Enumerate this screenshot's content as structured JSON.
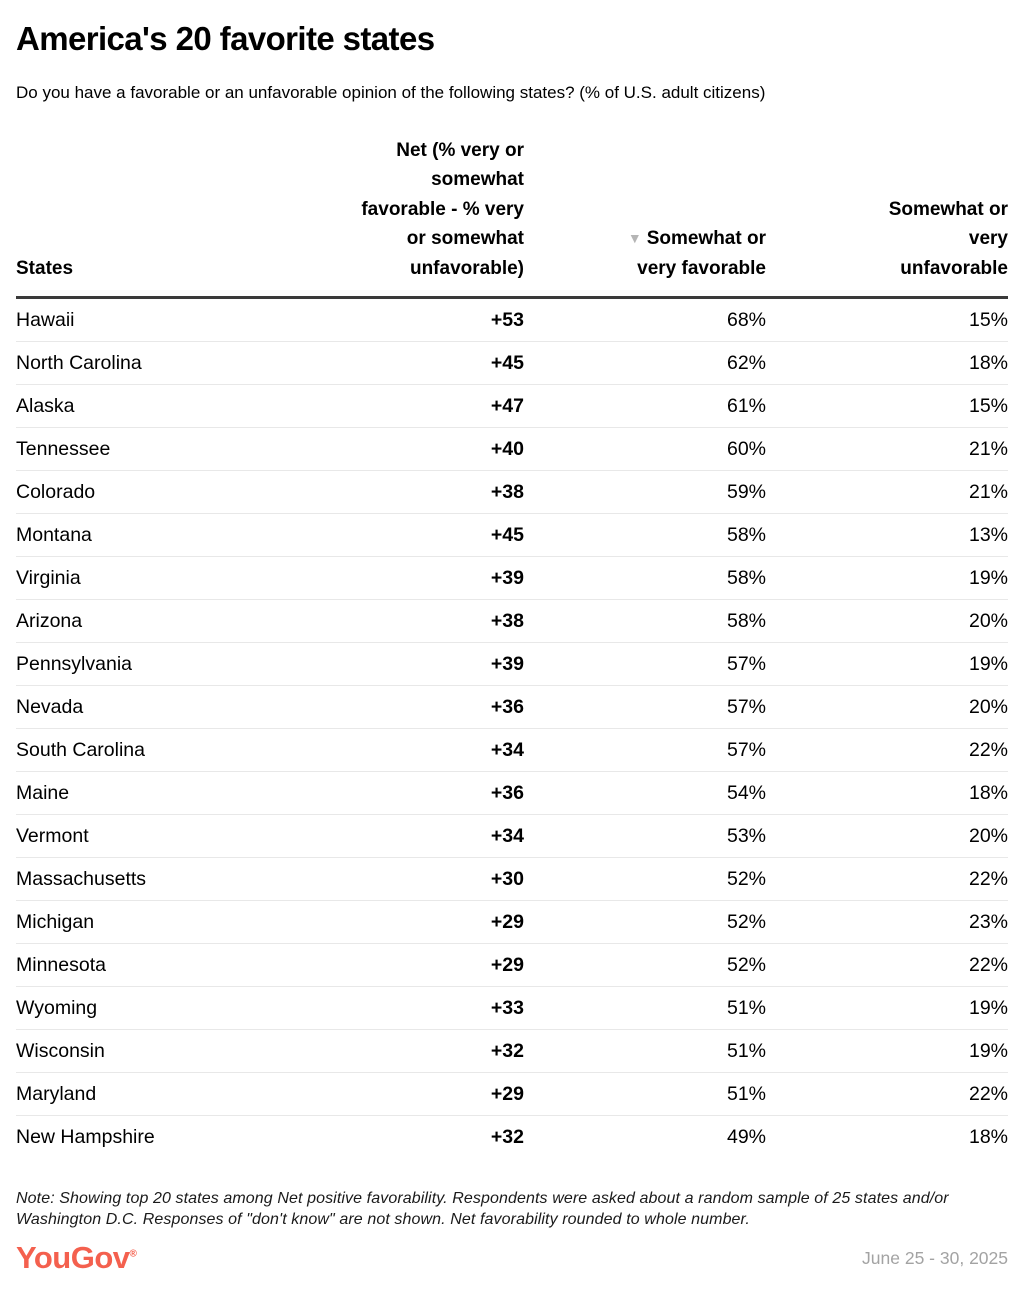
{
  "header": {
    "title": "America's 20 favorite states",
    "subtitle": "Do you have a favorable or an unfavorable opinion of the following states? (% of U.S. adult citizens)"
  },
  "table": {
    "columns": {
      "state": "States",
      "net": "Net (% very or\nsomewhat\nfavorable - % very\nor somewhat\nunfavorable)",
      "favorable": "Somewhat or\nvery favorable",
      "favorable_sort_indicator": "▼",
      "unfavorable": "Somewhat or\nvery\nunfavorable"
    },
    "rows": [
      {
        "state": "Hawaii",
        "net": "+53",
        "favorable": "68%",
        "unfavorable": "15%"
      },
      {
        "state": "North Carolina",
        "net": "+45",
        "favorable": "62%",
        "unfavorable": "18%"
      },
      {
        "state": "Alaska",
        "net": "+47",
        "favorable": "61%",
        "unfavorable": "15%"
      },
      {
        "state": "Tennessee",
        "net": "+40",
        "favorable": "60%",
        "unfavorable": "21%"
      },
      {
        "state": "Colorado",
        "net": "+38",
        "favorable": "59%",
        "unfavorable": "21%"
      },
      {
        "state": "Montana",
        "net": "+45",
        "favorable": "58%",
        "unfavorable": "13%"
      },
      {
        "state": "Virginia",
        "net": "+39",
        "favorable": "58%",
        "unfavorable": "19%"
      },
      {
        "state": "Arizona",
        "net": "+38",
        "favorable": "58%",
        "unfavorable": "20%"
      },
      {
        "state": "Pennsylvania",
        "net": "+39",
        "favorable": "57%",
        "unfavorable": "19%"
      },
      {
        "state": "Nevada",
        "net": "+36",
        "favorable": "57%",
        "unfavorable": "20%"
      },
      {
        "state": "South Carolina",
        "net": "+34",
        "favorable": "57%",
        "unfavorable": "22%"
      },
      {
        "state": "Maine",
        "net": "+36",
        "favorable": "54%",
        "unfavorable": "18%"
      },
      {
        "state": "Vermont",
        "net": "+34",
        "favorable": "53%",
        "unfavorable": "20%"
      },
      {
        "state": "Massachusetts",
        "net": "+30",
        "favorable": "52%",
        "unfavorable": "22%"
      },
      {
        "state": "Michigan",
        "net": "+29",
        "favorable": "52%",
        "unfavorable": "23%"
      },
      {
        "state": "Minnesota",
        "net": "+29",
        "favorable": "52%",
        "unfavorable": "22%"
      },
      {
        "state": "Wyoming",
        "net": "+33",
        "favorable": "51%",
        "unfavorable": "19%"
      },
      {
        "state": "Wisconsin",
        "net": "+32",
        "favorable": "51%",
        "unfavorable": "19%"
      },
      {
        "state": "Maryland",
        "net": "+29",
        "favorable": "51%",
        "unfavorable": "22%"
      },
      {
        "state": "New Hampshire",
        "net": "+32",
        "favorable": "49%",
        "unfavorable": "18%"
      }
    ]
  },
  "footer": {
    "note": "Note: Showing top 20 states among Net positive favorability. Respondents were asked about a random sample of 25 states and/or Washington D.C. Responses of \"don't know\" are not shown. Net favorability rounded to whole number.",
    "logo_text": "YouGov",
    "logo_registered_mark": "®",
    "brand_color": "#F4604E",
    "date_range": "June 25 - 30, 2025"
  },
  "chart_data": {
    "type": "table",
    "title": "America's 20 favorite states",
    "subtitle": "Do you have a favorable or an unfavorable opinion of the following states? (% of U.S. adult citizens)",
    "columns": [
      "States",
      "Net (% very or somewhat favorable - % very or somewhat unfavorable)",
      "Somewhat or very favorable",
      "Somewhat or very unfavorable"
    ],
    "sorted_by": "Somewhat or very favorable (descending)",
    "categories": [
      "Hawaii",
      "North Carolina",
      "Alaska",
      "Tennessee",
      "Colorado",
      "Montana",
      "Virginia",
      "Arizona",
      "Pennsylvania",
      "Nevada",
      "South Carolina",
      "Maine",
      "Vermont",
      "Massachusetts",
      "Michigan",
      "Minnesota",
      "Wyoming",
      "Wisconsin",
      "Maryland",
      "New Hampshire"
    ],
    "series": [
      {
        "name": "Net favorability",
        "values": [
          53,
          45,
          47,
          40,
          38,
          45,
          39,
          38,
          39,
          36,
          34,
          36,
          34,
          30,
          29,
          29,
          33,
          32,
          29,
          32
        ]
      },
      {
        "name": "Somewhat or very favorable (%)",
        "values": [
          68,
          62,
          61,
          60,
          59,
          58,
          58,
          58,
          57,
          57,
          57,
          54,
          53,
          52,
          52,
          52,
          51,
          51,
          51,
          49
        ]
      },
      {
        "name": "Somewhat or very unfavorable (%)",
        "values": [
          15,
          18,
          15,
          21,
          21,
          13,
          19,
          20,
          19,
          20,
          22,
          18,
          20,
          22,
          23,
          22,
          19,
          19,
          22,
          18
        ]
      }
    ]
  }
}
